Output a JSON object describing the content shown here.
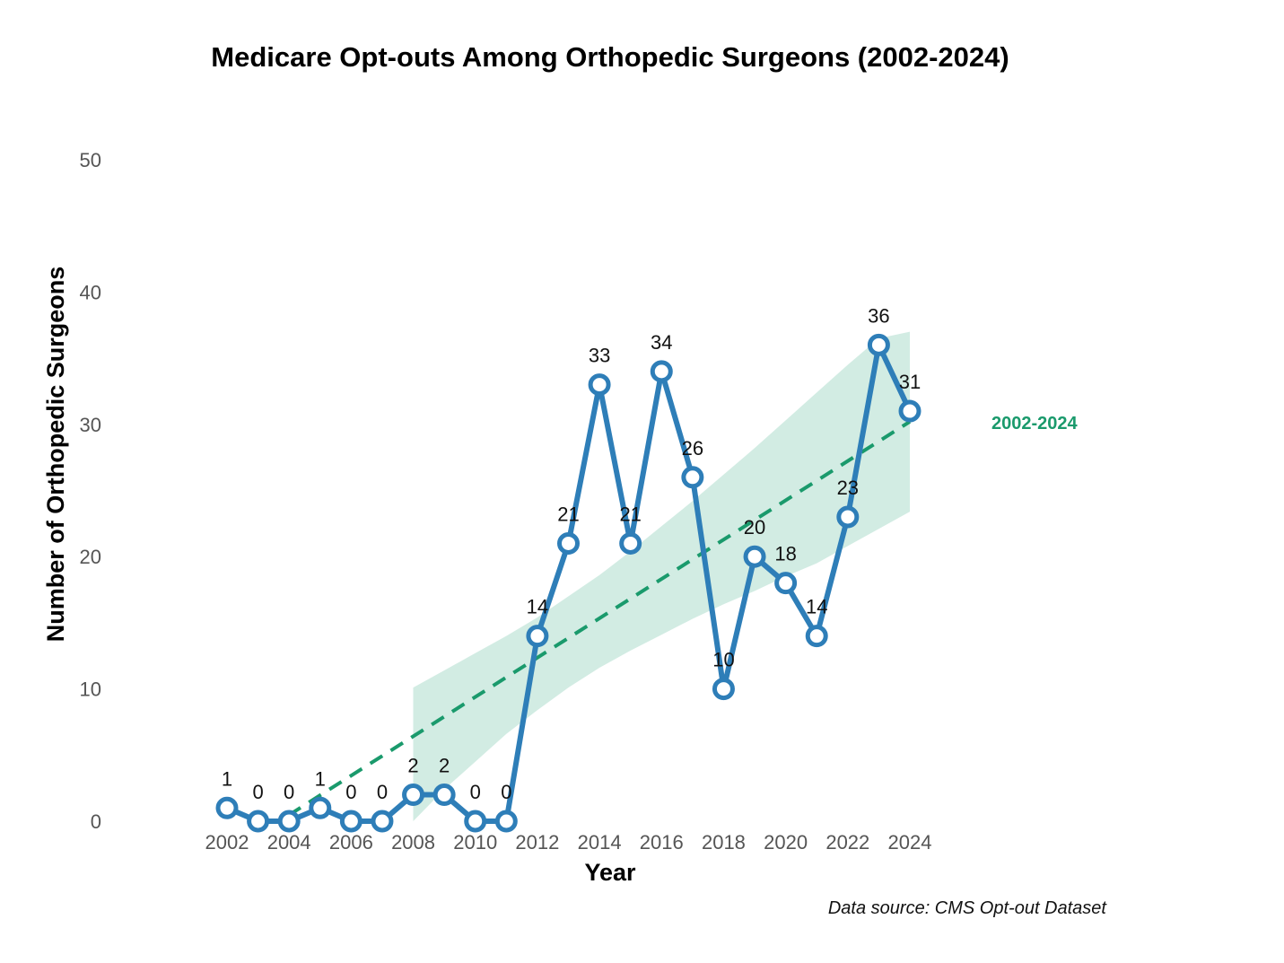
{
  "chart_data": {
    "type": "line",
    "title": "Medicare Opt-outs Among Orthopedic Surgeons (2002-2024)",
    "xlabel": "Year",
    "ylabel": "Number of Orthopedic Surgeons",
    "caption": "Data source: CMS Opt-out Dataset",
    "x": [
      2002,
      2003,
      2004,
      2005,
      2006,
      2007,
      2008,
      2009,
      2010,
      2011,
      2012,
      2013,
      2014,
      2015,
      2016,
      2017,
      2018,
      2019,
      2020,
      2021,
      2022,
      2023,
      2024
    ],
    "series": [
      {
        "values": [
          1,
          0,
          0,
          1,
          0,
          0,
          2,
          2,
          0,
          0,
          14,
          21,
          33,
          21,
          34,
          26,
          10,
          20,
          18,
          14,
          23,
          36,
          31
        ],
        "color": "#2e7eb8",
        "marker": "open-circle",
        "data_labels": true
      }
    ],
    "trend": {
      "label": "2002-2024 ",
      "style": "dashed",
      "color": "#1a9a6c",
      "band_color": "#d2ece3",
      "x_start": 2002,
      "y_start": -2.5,
      "x_end": 2024,
      "y_end": 30.2,
      "band": [
        {
          "x": 2008,
          "lower": 0,
          "upper": 10.1
        },
        {
          "x": 2009,
          "lower": 2.4,
          "upper": 11.4
        },
        {
          "x": 2010,
          "lower": 4.5,
          "upper": 12.7
        },
        {
          "x": 2011,
          "lower": 6.6,
          "upper": 14.0
        },
        {
          "x": 2012,
          "lower": 8.4,
          "upper": 15.4
        },
        {
          "x": 2013,
          "lower": 10.1,
          "upper": 17.0
        },
        {
          "x": 2014,
          "lower": 11.6,
          "upper": 18.6
        },
        {
          "x": 2015,
          "lower": 12.9,
          "upper": 20.4
        },
        {
          "x": 2016,
          "lower": 14.1,
          "upper": 22.3
        },
        {
          "x": 2017,
          "lower": 15.3,
          "upper": 24.2
        },
        {
          "x": 2018,
          "lower": 16.4,
          "upper": 26.2
        },
        {
          "x": 2019,
          "lower": 17.4,
          "upper": 28.2
        },
        {
          "x": 2020,
          "lower": 18.5,
          "upper": 30.3
        },
        {
          "x": 2021,
          "lower": 19.5,
          "upper": 32.4
        },
        {
          "x": 2022,
          "lower": 20.8,
          "upper": 34.5
        },
        {
          "x": 2023,
          "lower": 22.1,
          "upper": 36.5
        },
        {
          "x": 2024,
          "lower": 23.4,
          "upper": 37.0
        }
      ]
    },
    "xticks": [
      2002,
      2004,
      2006,
      2008,
      2010,
      2012,
      2014,
      2016,
      2018,
      2020,
      2022,
      2024
    ],
    "yticks": [
      0,
      10,
      20,
      30,
      40,
      50
    ],
    "xlim": [
      2002,
      2024
    ],
    "ylim": [
      0,
      50
    ],
    "grid": false,
    "legend": "none"
  }
}
